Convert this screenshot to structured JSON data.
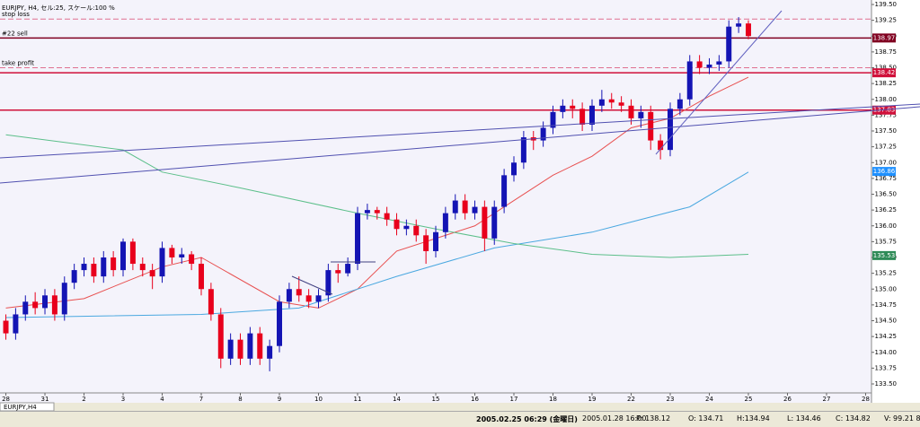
{
  "window": {
    "chart_title": "EURJPY, H4, セル:25, スケール:100 %",
    "tab": "EURJPY,H4"
  },
  "chart_data": {
    "type": "candlestick",
    "x": [
      0,
      1,
      2,
      3,
      4,
      5,
      6,
      7,
      8,
      9,
      10,
      11,
      12,
      13,
      14,
      15,
      16,
      17,
      18,
      19,
      20,
      21,
      22,
      23,
      24,
      25,
      26,
      27,
      28,
      29,
      30,
      31,
      32,
      33,
      34,
      35,
      36,
      37,
      38,
      39,
      40,
      41,
      42,
      43,
      44,
      45,
      46,
      47,
      48,
      49,
      50,
      51,
      52,
      53,
      54,
      55,
      56,
      57,
      58,
      59,
      60,
      61,
      62,
      63,
      64,
      65,
      66,
      67,
      68,
      69,
      70,
      71,
      72,
      73,
      74,
      75,
      76
    ],
    "open": [
      134.5,
      134.3,
      134.6,
      134.8,
      134.7,
      134.9,
      134.6,
      135.1,
      135.3,
      135.4,
      135.2,
      135.5,
      135.3,
      135.75,
      135.4,
      135.3,
      135.2,
      135.65,
      135.5,
      135.55,
      135.4,
      135.0,
      134.6,
      133.9,
      134.2,
      133.9,
      134.3,
      133.9,
      134.1,
      134.8,
      135.0,
      134.9,
      134.8,
      134.9,
      135.3,
      135.25,
      135.4,
      136.2,
      136.25,
      136.2,
      136.1,
      135.95,
      136.0,
      135.85,
      135.6,
      135.9,
      136.2,
      136.4,
      136.2,
      136.3,
      135.8,
      136.3,
      136.8,
      137.0,
      137.4,
      137.35,
      137.55,
      137.8,
      137.9,
      137.85,
      137.6,
      137.9,
      138.0,
      137.95,
      137.9,
      137.7,
      137.8,
      137.35,
      137.2,
      137.85,
      138.0,
      138.6,
      138.5,
      138.55,
      138.6,
      139.15,
      139.2
    ],
    "high": [
      134.6,
      134.7,
      134.9,
      134.95,
      135.0,
      135.0,
      135.2,
      135.4,
      135.5,
      135.5,
      135.6,
      135.6,
      135.8,
      135.8,
      135.5,
      135.4,
      135.75,
      135.7,
      135.65,
      135.6,
      135.5,
      135.1,
      134.7,
      134.3,
      134.3,
      134.4,
      134.4,
      134.2,
      134.9,
      135.1,
      135.2,
      135.0,
      135.0,
      135.4,
      135.4,
      135.5,
      136.3,
      136.35,
      136.3,
      136.3,
      136.2,
      136.1,
      136.1,
      135.95,
      136.0,
      136.3,
      136.5,
      136.5,
      136.4,
      136.4,
      136.4,
      136.9,
      137.1,
      137.5,
      137.5,
      137.65,
      137.9,
      138.0,
      138.0,
      137.95,
      138.0,
      138.15,
      138.1,
      138.05,
      138.0,
      137.9,
      137.9,
      137.45,
      137.95,
      138.1,
      138.7,
      138.7,
      138.65,
      138.7,
      139.25,
      139.3,
      139.25
    ],
    "low": [
      134.2,
      134.2,
      134.5,
      134.6,
      134.6,
      134.5,
      134.5,
      135.0,
      135.2,
      135.1,
      135.1,
      135.2,
      135.2,
      135.3,
      135.2,
      135.0,
      135.1,
      135.4,
      135.4,
      135.3,
      134.9,
      134.5,
      133.75,
      133.8,
      133.8,
      133.8,
      133.8,
      133.7,
      134.0,
      134.7,
      134.8,
      134.7,
      134.7,
      134.8,
      135.1,
      135.2,
      135.3,
      136.1,
      136.1,
      136.0,
      135.85,
      135.85,
      135.75,
      135.4,
      135.5,
      135.8,
      136.1,
      136.1,
      136.1,
      135.6,
      135.7,
      136.2,
      136.7,
      136.9,
      137.2,
      137.25,
      137.45,
      137.7,
      137.7,
      137.5,
      137.5,
      137.8,
      137.85,
      137.8,
      137.6,
      137.55,
      137.2,
      137.05,
      137.1,
      137.75,
      137.9,
      138.4,
      138.4,
      138.45,
      138.5,
      139.05,
      138.95
    ],
    "close": [
      134.3,
      134.6,
      134.8,
      134.7,
      134.9,
      134.6,
      135.1,
      135.3,
      135.4,
      135.2,
      135.5,
      135.3,
      135.75,
      135.4,
      135.3,
      135.2,
      135.65,
      135.5,
      135.55,
      135.4,
      135.0,
      134.6,
      133.9,
      134.2,
      133.9,
      134.3,
      133.9,
      134.1,
      134.8,
      135.0,
      134.9,
      134.8,
      134.9,
      135.3,
      135.25,
      135.4,
      136.2,
      136.25,
      136.2,
      136.1,
      135.95,
      136.0,
      135.85,
      135.6,
      135.9,
      136.2,
      136.4,
      136.2,
      136.3,
      135.8,
      136.3,
      136.8,
      137.0,
      137.4,
      137.35,
      137.55,
      137.8,
      137.9,
      137.85,
      137.6,
      137.9,
      138.0,
      137.95,
      137.9,
      137.7,
      137.8,
      137.35,
      137.2,
      137.85,
      138.0,
      138.6,
      138.5,
      138.55,
      138.6,
      139.15,
      139.2,
      139.0
    ],
    "up_color": "#1414b4",
    "down_color": "#e8001c",
    "series": [
      {
        "color": "#e85050",
        "x": [
          0,
          8,
          16,
          20,
          28,
          32,
          36,
          40,
          48,
          52,
          56,
          60,
          64,
          68,
          72,
          76
        ],
        "values": [
          134.7,
          134.85,
          135.35,
          135.5,
          134.8,
          134.7,
          135.0,
          135.6,
          136.0,
          136.4,
          136.8,
          137.1,
          137.55,
          137.7,
          138.05,
          138.35
        ]
      },
      {
        "color": "#4aa8e0",
        "x": [
          0,
          20,
          30,
          40,
          50,
          60,
          70,
          76
        ],
        "values": [
          134.55,
          134.6,
          134.7,
          135.2,
          135.65,
          135.9,
          136.3,
          136.85
        ]
      },
      {
        "color": "#5cbf8a",
        "x": [
          0,
          12,
          16,
          24,
          36,
          44,
          52,
          60,
          68,
          76
        ],
        "values": [
          137.44,
          137.2,
          136.85,
          136.6,
          136.2,
          135.95,
          135.72,
          135.55,
          135.5,
          135.55
        ]
      }
    ],
    "levels": [
      {
        "label": "stop loss",
        "value": 139.27,
        "color": "#e07090",
        "dash": true
      },
      {
        "label": "#22 sell",
        "value": 138.97,
        "color": "#800020",
        "dash": false,
        "tag": true
      },
      {
        "label": "take profit",
        "value": 138.5,
        "color": "#e07090",
        "dash": true
      },
      {
        "value": 138.42,
        "color": "#d0103a",
        "dash": false,
        "tag": true
      },
      {
        "value": 137.83,
        "color": "#d0103a",
        "dash": false,
        "tag": true
      }
    ],
    "price_tags": [
      {
        "value": 136.86,
        "color": "#1e90ff"
      },
      {
        "value": 135.53,
        "color": "#2e8b57"
      }
    ],
    "xlim": [
      -0.6,
      88.6
    ],
    "xticks": [
      {
        "value": 0,
        "label": "28"
      },
      {
        "value": 4,
        "label": "31"
      },
      {
        "value": 8,
        "label": "2"
      },
      {
        "value": 12,
        "label": "3"
      },
      {
        "value": 16,
        "label": "4"
      },
      {
        "value": 20,
        "label": "7"
      },
      {
        "value": 24,
        "label": "8"
      },
      {
        "value": 28,
        "label": "9"
      },
      {
        "value": 32,
        "label": "10"
      },
      {
        "value": 36,
        "label": "11"
      },
      {
        "value": 40,
        "label": "14"
      },
      {
        "value": 44,
        "label": "15"
      },
      {
        "value": 48,
        "label": "16"
      },
      {
        "value": 52,
        "label": "17"
      },
      {
        "value": 56,
        "label": "18"
      },
      {
        "value": 60,
        "label": "19"
      },
      {
        "value": 64,
        "label": "22"
      },
      {
        "value": 68,
        "label": "23"
      },
      {
        "value": 72,
        "label": "24"
      },
      {
        "value": 76,
        "label": "25"
      },
      {
        "value": 80,
        "label": "26"
      },
      {
        "value": 84,
        "label": "27"
      },
      {
        "value": 88,
        "label": "28"
      }
    ],
    "ylim": [
      133.5,
      139.5
    ],
    "yticks": [
      {
        "value": 139.5,
        "label": "139.50"
      },
      {
        "value": 139.25,
        "label": "139.25"
      },
      {
        "value": 139,
        "label": "139.00"
      },
      {
        "value": 138.75,
        "label": "138.75"
      },
      {
        "value": 138.5,
        "label": "138.50"
      },
      {
        "value": 138.25,
        "label": "138.25"
      },
      {
        "value": 138,
        "label": "138.00"
      },
      {
        "value": 137.75,
        "label": "137.75"
      },
      {
        "value": 137.5,
        "label": "137.50"
      },
      {
        "value": 137.25,
        "label": "137.25"
      },
      {
        "value": 137,
        "label": "137.00"
      },
      {
        "value": 136.75,
        "label": "136.75"
      },
      {
        "value": 136.5,
        "label": "136.50"
      },
      {
        "value": 136.25,
        "label": "136.25"
      },
      {
        "value": 136,
        "label": "136.00"
      },
      {
        "value": 135.75,
        "label": "135.75"
      },
      {
        "value": 135.5,
        "label": "135.50"
      },
      {
        "value": 135.25,
        "label": "135.25"
      },
      {
        "value": 135,
        "label": "135.00"
      },
      {
        "value": 134.75,
        "label": "134.75"
      },
      {
        "value": 134.5,
        "label": "134.50"
      },
      {
        "value": 134.25,
        "label": "134.25"
      },
      {
        "value": 134,
        "label": "134.00"
      },
      {
        "value": 133.75,
        "label": "133.75"
      },
      {
        "value": 133.5,
        "label": "133.50"
      }
    ]
  },
  "status_bar": [
    "2005.02.25 06:29 (金曜日)",
    "2005.01.28 16:00",
    "P: 138.12",
    "O: 134.71",
    "H:134.94",
    "L: 134.46",
    "C: 134.82",
    "V: 99.21 8"
  ]
}
